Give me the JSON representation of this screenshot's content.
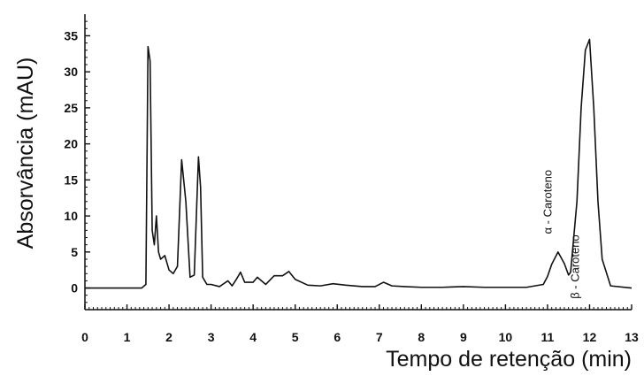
{
  "chart_data": {
    "type": "line",
    "title": "",
    "xlabel": "Tempo de retenção (min)",
    "ylabel": "Absorvância (mAU)",
    "xlim": [
      0,
      13
    ],
    "ylim": [
      -3,
      38
    ],
    "xticks": [
      0,
      1,
      2,
      3,
      4,
      5,
      6,
      7,
      8,
      9,
      10,
      11,
      12,
      13
    ],
    "yticks": [
      0,
      5,
      10,
      15,
      20,
      25,
      30,
      35
    ],
    "x_tick_labels": [
      "0",
      "1",
      "2",
      "3",
      "4",
      "5",
      "6",
      "7",
      "8",
      "9",
      "10",
      "11",
      "12",
      "13"
    ],
    "y_tick_labels": [
      "0",
      "5",
      "10",
      "15",
      "20",
      "25",
      "30",
      "35"
    ],
    "grid": false,
    "legend": "none",
    "colors": {
      "line": "#111111",
      "axis": "#111111",
      "text": "#111111"
    },
    "series": [
      {
        "x": [
          0,
          1.35,
          1.45,
          1.5,
          1.55,
          1.6,
          1.65,
          1.7,
          1.75,
          1.8,
          1.9,
          2.0,
          2.1,
          2.2,
          2.3,
          2.4,
          2.5,
          2.6,
          2.7,
          2.75,
          2.8,
          2.9,
          3.0,
          3.2,
          3.4,
          3.5,
          3.6,
          3.7,
          3.8,
          4.0,
          4.1,
          4.3,
          4.5,
          4.7,
          4.85,
          5.0,
          5.3,
          5.6,
          5.9,
          6.2,
          6.6,
          6.9,
          7.1,
          7.3,
          7.6,
          8.0,
          8.5,
          9.0,
          9.5,
          10.0,
          10.5,
          10.9,
          11.0,
          11.1,
          11.25,
          11.4,
          11.5,
          11.55,
          11.7,
          11.8,
          11.9,
          12.0,
          12.1,
          12.2,
          12.3,
          12.5,
          13.0
        ],
        "y": [
          0,
          0,
          0.5,
          33.5,
          31.5,
          8,
          6,
          10,
          5,
          4,
          4.5,
          2.5,
          2,
          3,
          17.8,
          12,
          1.5,
          1.8,
          18.2,
          14,
          1.5,
          0.5,
          0.5,
          0.2,
          1,
          0.3,
          1.2,
          2.2,
          0.8,
          0.8,
          1.5,
          0.5,
          1.7,
          1.7,
          2.3,
          1.2,
          0.4,
          0.3,
          0.6,
          0.4,
          0.2,
          0.2,
          0.8,
          0.3,
          0.2,
          0.1,
          0.1,
          0.2,
          0.1,
          0.1,
          0.1,
          0.5,
          1.6,
          3.3,
          5,
          3.4,
          1.8,
          2.2,
          12,
          25,
          33,
          34.5,
          25,
          12,
          4,
          0.3,
          0
        ]
      }
    ],
    "annotations": [
      {
        "text": "α - Caroteno",
        "x": 11.1,
        "y": 7.5,
        "rotation": -90
      },
      {
        "text": "β - Caroteno",
        "x": 11.75,
        "y": -1.5,
        "rotation": -90
      }
    ]
  }
}
